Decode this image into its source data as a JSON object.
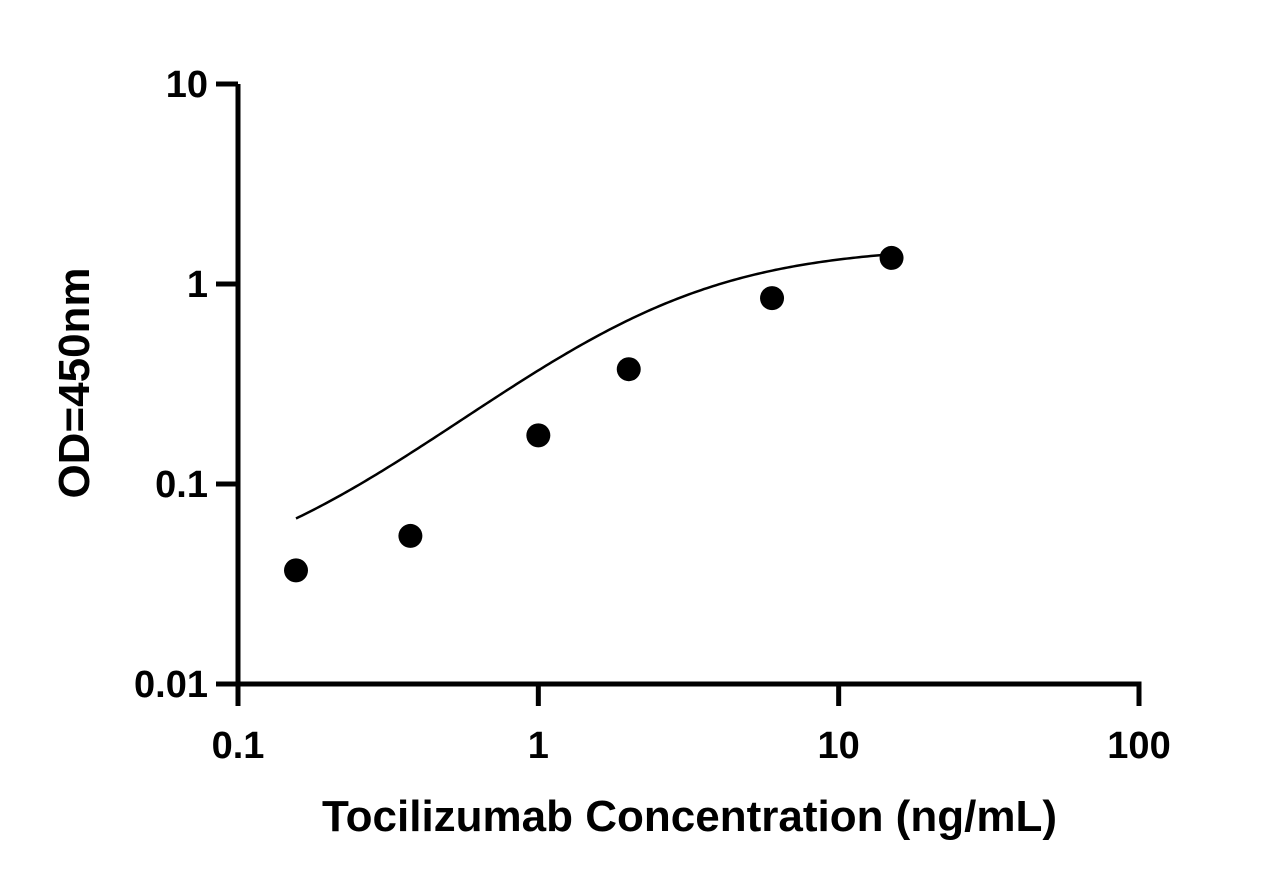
{
  "chart_data": {
    "type": "scatter",
    "title": "",
    "xlabel": "Tocilizumab Concentration (ng/mL)",
    "ylabel": "OD=450nm",
    "xscale": "log",
    "yscale": "log",
    "xlim": [
      0.1,
      100
    ],
    "ylim": [
      0.01,
      10
    ],
    "xticks": [
      0.1,
      1,
      10,
      100
    ],
    "yticks": [
      0.01,
      0.1,
      1,
      10
    ],
    "xtick_labels": [
      "0.1",
      "1",
      "10",
      "100"
    ],
    "ytick_labels": [
      "0.01",
      "0.1",
      "1",
      "10"
    ],
    "grid": false,
    "legend": "none",
    "series": [
      {
        "marker": "filled-circle",
        "color": "#000000",
        "x": [
          0.156,
          0.375,
          1,
          2,
          6,
          15
        ],
        "y": [
          0.037,
          0.055,
          0.175,
          0.375,
          0.85,
          1.35
        ]
      }
    ],
    "fit_curve": {
      "model": "4PL",
      "bottom": 0.029,
      "top": 1.55,
      "ec50": 2.6,
      "hill": 1.3,
      "x_range": [
        0.156,
        15
      ],
      "color": "#000000"
    }
  }
}
